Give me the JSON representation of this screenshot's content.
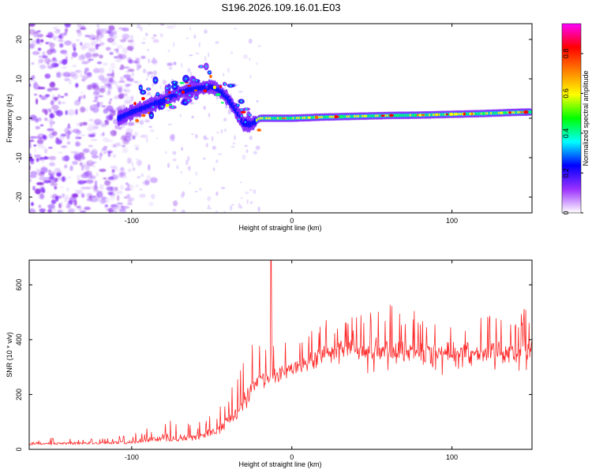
{
  "title": "S196.2026.109.16.01.E03",
  "chart_data": [
    {
      "type": "heatmap",
      "title": "",
      "xlabel": "Height of straight line (km)",
      "ylabel": "Frequency (Hz)",
      "xlim": [
        -164,
        150
      ],
      "ylim": [
        -24,
        24
      ],
      "x_ticks": [
        -100,
        0,
        100
      ],
      "y_ticks": [
        20,
        10,
        0,
        -10,
        -20
      ],
      "colorbar": {
        "label": "Normalized spectral amplitude",
        "range": [
          0,
          0.95
        ],
        "ticks": [
          0,
          0.2,
          0.4,
          0.6,
          0.8
        ],
        "colors": [
          "#ffffff",
          "#9b30ff",
          "#0000ff",
          "#00ffff",
          "#00ff00",
          "#ffff00",
          "#ff8000",
          "#ff0000",
          "#ff00ff"
        ]
      },
      "ridge": {
        "x": [
          -108,
          -100,
          -90,
          -80,
          -70,
          -60,
          -50,
          -45,
          -40,
          -35,
          -30,
          -25,
          -20,
          -10,
          0,
          20,
          40,
          60,
          80,
          100,
          120,
          140,
          150
        ],
        "y": [
          0,
          1.5,
          3,
          4.5,
          6.5,
          7.5,
          8,
          7,
          5,
          2,
          -1.5,
          -1.5,
          0,
          0,
          0,
          0.3,
          0.5,
          0.7,
          0.8,
          1,
          1.2,
          1.5,
          1.6
        ]
      },
      "noise_region_x": [
        -164,
        -100
      ]
    },
    {
      "type": "line",
      "title": "",
      "xlabel": "Height of straight line (km)",
      "ylabel": "SNR (10 * v/v)",
      "xlim": [
        -164,
        150
      ],
      "ylim": [
        0,
        690
      ],
      "x_ticks": [
        -100,
        0,
        100
      ],
      "y_ticks": [
        0,
        200,
        400,
        600
      ],
      "series": [
        {
          "name": "SNR",
          "color": "#ff2a2a",
          "envelope_x": [
            -164,
            -120,
            -100,
            -80,
            -60,
            -45,
            -40,
            -35,
            -30,
            -25,
            -20,
            -15,
            -10,
            -5,
            0,
            10,
            20,
            30,
            40,
            50,
            60,
            80,
            100,
            120,
            140,
            150
          ],
          "envelope_baseline": [
            18,
            20,
            22,
            30,
            35,
            60,
            90,
            110,
            150,
            200,
            250,
            250,
            260,
            280,
            300,
            310,
            350,
            360,
            360,
            355,
            350,
            350,
            345,
            345,
            345,
            345
          ],
          "envelope_peak": [
            40,
            45,
            55,
            110,
            90,
            160,
            200,
            260,
            340,
            420,
            380,
            370,
            390,
            400,
            390,
            450,
            470,
            480,
            490,
            520,
            540,
            510,
            500,
            490,
            520,
            540
          ],
          "spike": {
            "x": -13,
            "y": 690
          }
        }
      ]
    }
  ]
}
